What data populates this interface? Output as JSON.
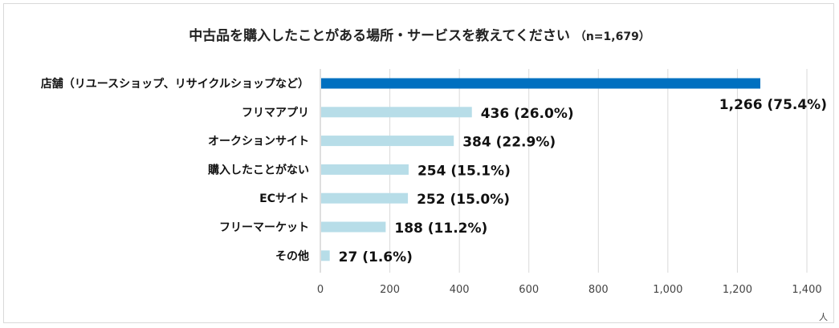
{
  "title": {
    "main": "中古品を購入したことがある場所・サービスを教えてください",
    "sample": "（n=1,679）"
  },
  "chart_data": {
    "type": "bar",
    "orientation": "horizontal",
    "categories": [
      "店舗（リユースショップ、リサイクルショップなど）",
      "フリマアプリ",
      "オークションサイト",
      "購入したことがない",
      "ECサイト",
      "フリーマーケット",
      "その他"
    ],
    "values": [
      1266,
      436,
      384,
      254,
      252,
      188,
      27
    ],
    "data_labels": [
      "1,266 (75.4%)",
      "436 (26.0%)",
      "384 (22.9%)",
      "254 (15.1%)",
      "252 (15.0%)",
      "188 (11.2%)",
      "27 (1.6%)"
    ],
    "xlim": [
      0,
      1400
    ],
    "xticks": [
      0,
      200,
      400,
      600,
      800,
      1000,
      1200,
      1400
    ],
    "xtick_labels": [
      "0",
      "200",
      "400",
      "600",
      "800",
      "1,000",
      "1,200",
      "1,400"
    ],
    "grid": "vertical",
    "colors": {
      "highlight": "#0070c0",
      "bar": "#b7dde8",
      "grid": "#d9d9d9"
    }
  },
  "corner_mark": "人"
}
